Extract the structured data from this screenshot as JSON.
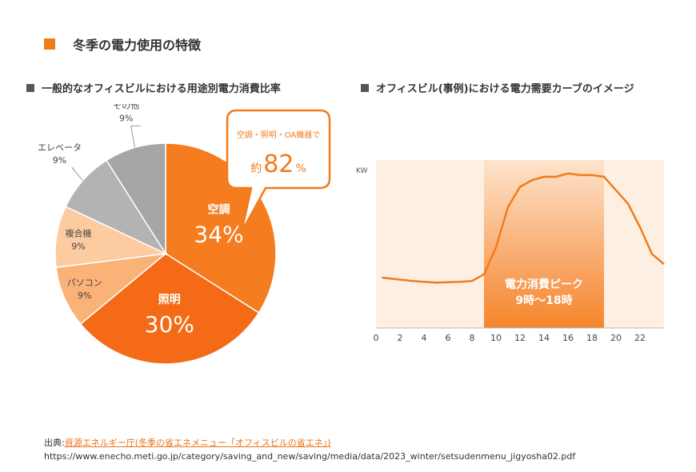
{
  "header": {
    "title": "冬季の電力使用の特徴"
  },
  "pie_section": {
    "heading": "一般的なオフィスビルにおける用途別電力消費比率"
  },
  "line_section": {
    "heading": "オフィスビル(事例)における電力需要カーブのイメージ"
  },
  "callout": {
    "line1": "空調・照明・OA機器で",
    "prefix": "約",
    "value": "82",
    "unit": "%"
  },
  "chart_data": [
    {
      "type": "pie",
      "title": "一般的なオフィスビルにおける用途別電力消費比率",
      "slices": [
        {
          "label": "空調",
          "value": 34,
          "display": "34%",
          "color": "#f57c1f",
          "text_color": "#ffffff"
        },
        {
          "label": "照明",
          "value": 30,
          "display": "30%",
          "color": "#f46a16",
          "text_color": "#ffffff"
        },
        {
          "label": "パソコン",
          "value": 9,
          "display": "9%",
          "color": "#fbb277",
          "text_color": "#444444"
        },
        {
          "label": "複合機",
          "value": 9,
          "display": "9%",
          "color": "#fccba0",
          "text_color": "#444444"
        },
        {
          "label": "エレベータ",
          "value": 9,
          "display": "9%",
          "color": "#b3b3b3",
          "text_color": "#444444"
        },
        {
          "label": "その他",
          "value": 9,
          "display": "9%",
          "color": "#a6a6a6",
          "text_color": "#444444"
        }
      ]
    },
    {
      "type": "line",
      "title": "オフィスビル(事例)における電力需要カーブのイメージ",
      "ylabel": "KW",
      "xlim": [
        0,
        24
      ],
      "ylim": [
        0,
        100
      ],
      "xticks": [
        "0",
        "2",
        "4",
        "6",
        "8",
        "10",
        "12",
        "14",
        "16",
        "18",
        "20",
        "22"
      ],
      "x": [
        0.5,
        3,
        5,
        7,
        8,
        9,
        10,
        11,
        12,
        13,
        14,
        15,
        16,
        17,
        18,
        19,
        20,
        21,
        22,
        23,
        24
      ],
      "y": [
        30,
        28,
        27,
        27.5,
        28,
        32,
        48,
        72,
        84,
        88,
        90,
        90,
        92,
        91,
        91,
        90,
        82,
        74,
        60,
        44,
        38
      ],
      "peak": {
        "from": 9,
        "to": 19,
        "label_line1": "電力消費ピーク",
        "label_line2": "9時～18時"
      },
      "line_color": "#f27b1b"
    }
  ],
  "source": {
    "label": "出典:",
    "link_text": "資源エネルギー庁(冬季の省エネメニュー「オフィスビルの省エネ」)",
    "url": "https://www.enecho.meti.go.jp/category/saving_and_new/saving/media/data/2023_winter/setsudenmenu_jigyosha02.pdf"
  }
}
